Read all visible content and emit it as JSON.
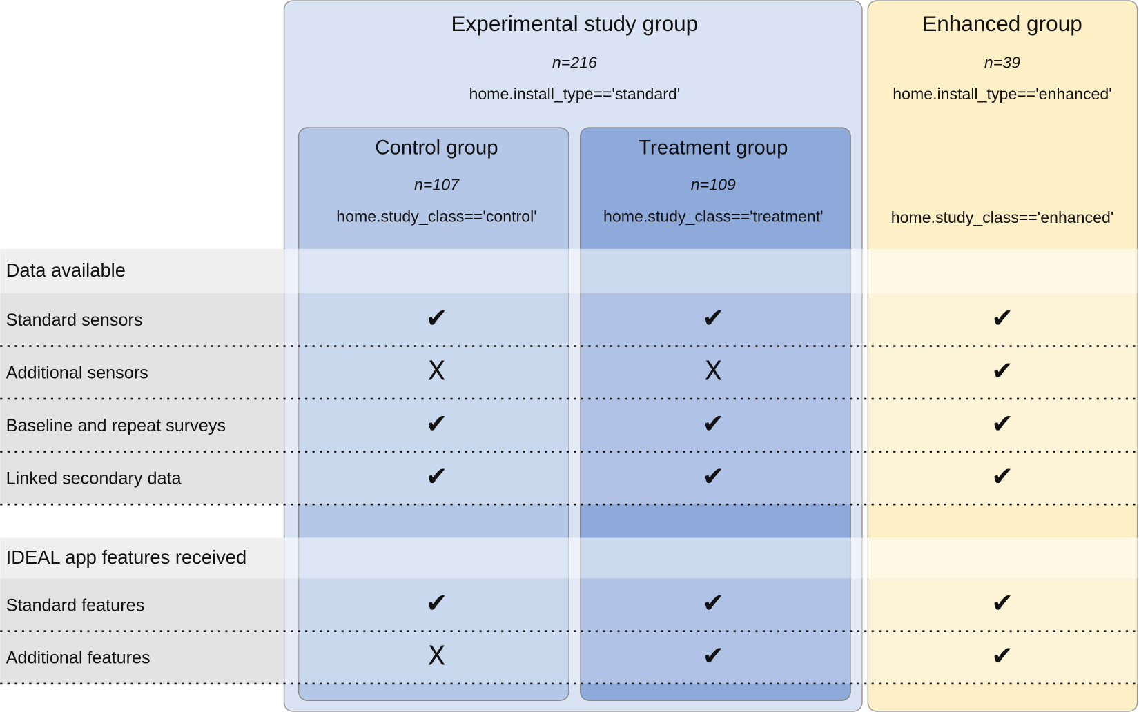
{
  "groups": {
    "experimental": {
      "title": "Experimental study group",
      "n": "n=216",
      "condition": "home.install_type=='standard'"
    },
    "enhanced": {
      "title": "Enhanced group",
      "n": "n=39",
      "condition": "home.install_type=='enhanced'",
      "class_condition": "home.study_class=='enhanced'"
    },
    "control": {
      "title": "Control group",
      "n": "n=107",
      "condition": "home.study_class=='control'"
    },
    "treatment": {
      "title": "Treatment group",
      "n": "n=109",
      "condition": "home.study_class=='treatment'"
    }
  },
  "sections": [
    {
      "title": "Data available",
      "rows": [
        {
          "label": "Standard sensors",
          "cells": [
            "✔",
            "✔",
            "✔"
          ]
        },
        {
          "label": "Additional sensors",
          "cells": [
            "X",
            "X",
            "✔"
          ]
        },
        {
          "label": "Baseline and repeat surveys",
          "cells": [
            "✔",
            "✔",
            "✔"
          ]
        },
        {
          "label": "Linked secondary data",
          "cells": [
            "✔",
            "✔",
            "✔"
          ]
        }
      ]
    },
    {
      "title": "IDEAL app features received",
      "rows": [
        {
          "label": "Standard features",
          "cells": [
            "✔",
            "✔",
            "✔"
          ]
        },
        {
          "label": "Additional features",
          "cells": [
            "X",
            "✔",
            "✔"
          ]
        }
      ]
    }
  ]
}
